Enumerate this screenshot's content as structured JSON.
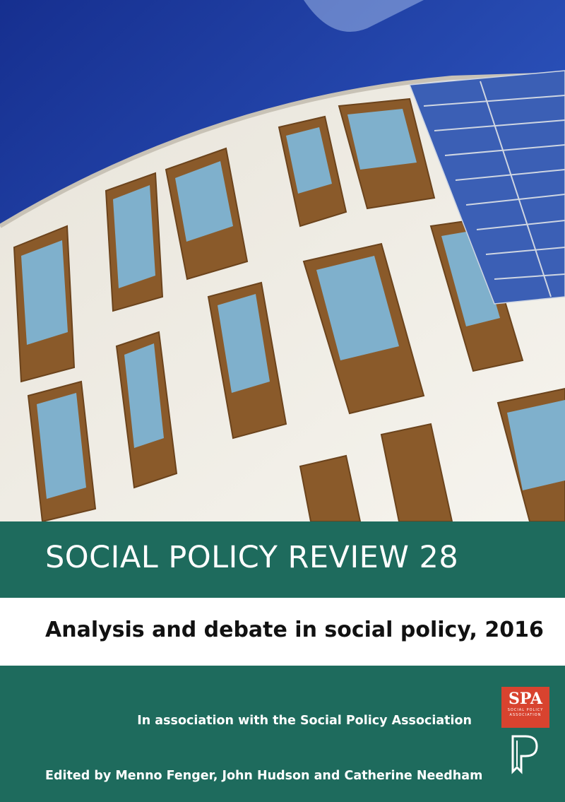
{
  "cover": {
    "title": "SOCIAL POLICY REVIEW 28",
    "subtitle": "Analysis and debate in social policy, 2016",
    "association": "In association with the Social Policy Association",
    "editors": "Edited by Menno Fenger, John Hudson and Catherine Needham"
  },
  "logos": {
    "spa_mark": "SPA",
    "spa_text": "SOCIAL POLICY ASSOCIATION",
    "publisher_mark": "P"
  },
  "colors": {
    "green": "#1e6b5d",
    "spa_red": "#d8432f",
    "sky": "#1f3fa0"
  }
}
